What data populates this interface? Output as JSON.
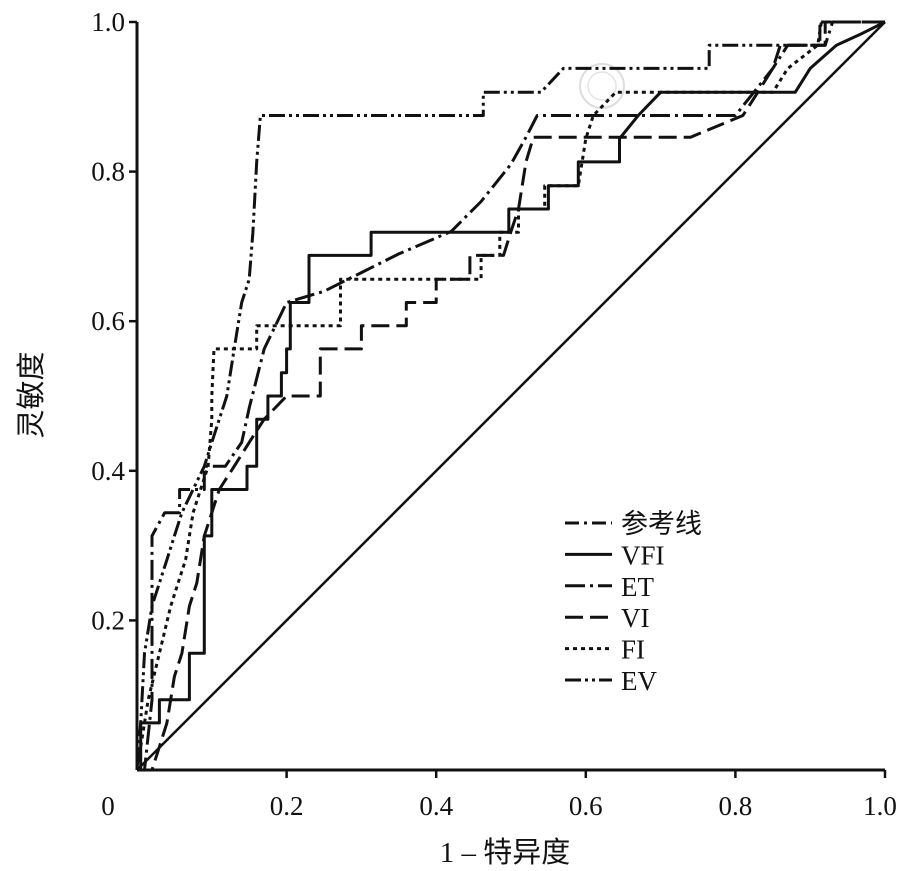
{
  "chart_data": {
    "type": "line",
    "title": "",
    "xlabel": "1 – 特异度",
    "ylabel": "灵敏度",
    "xlim": [
      0,
      1.0
    ],
    "ylim": [
      0,
      1.0
    ],
    "grid": false,
    "legend_position": "bottom-right",
    "line_color": "#111111",
    "xticks": [
      {
        "value": 0,
        "label": "0"
      },
      {
        "value": 0.2,
        "label": "0.2"
      },
      {
        "value": 0.4,
        "label": "0.4"
      },
      {
        "value": 0.6,
        "label": "0.6"
      },
      {
        "value": 0.8,
        "label": "0.8"
      },
      {
        "value": 1.0,
        "label": "1.0"
      }
    ],
    "yticks": [
      {
        "value": 0.2,
        "label": "0.2"
      },
      {
        "value": 0.4,
        "label": "0.4"
      },
      {
        "value": 0.6,
        "label": "0.6"
      },
      {
        "value": 0.8,
        "label": "0.8"
      },
      {
        "value": 1.0,
        "label": "1.0"
      }
    ],
    "series": [
      {
        "name": "参考线",
        "line_style": "solid",
        "legend_style": "dash-dot",
        "points": [
          [
            0,
            0
          ],
          [
            1,
            1
          ]
        ]
      },
      {
        "name": "VFI",
        "line_style": "solid",
        "points": [
          [
            0,
            0
          ],
          [
            0.005,
            0
          ],
          [
            0.005,
            0.063
          ],
          [
            0.03,
            0.063
          ],
          [
            0.03,
            0.094
          ],
          [
            0.07,
            0.094
          ],
          [
            0.07,
            0.156
          ],
          [
            0.09,
            0.156
          ],
          [
            0.09,
            0.313
          ],
          [
            0.1,
            0.313
          ],
          [
            0.1,
            0.375
          ],
          [
            0.147,
            0.375
          ],
          [
            0.147,
            0.406
          ],
          [
            0.16,
            0.406
          ],
          [
            0.16,
            0.469
          ],
          [
            0.175,
            0.469
          ],
          [
            0.175,
            0.5
          ],
          [
            0.193,
            0.5
          ],
          [
            0.193,
            0.531
          ],
          [
            0.2,
            0.531
          ],
          [
            0.2,
            0.563
          ],
          [
            0.205,
            0.563
          ],
          [
            0.205,
            0.625
          ],
          [
            0.23,
            0.625
          ],
          [
            0.23,
            0.688
          ],
          [
            0.313,
            0.688
          ],
          [
            0.313,
            0.719
          ],
          [
            0.497,
            0.719
          ],
          [
            0.497,
            0.75
          ],
          [
            0.55,
            0.75
          ],
          [
            0.55,
            0.781
          ],
          [
            0.59,
            0.781
          ],
          [
            0.59,
            0.813
          ],
          [
            0.645,
            0.813
          ],
          [
            0.645,
            0.844
          ],
          [
            0.67,
            0.875
          ],
          [
            0.7,
            0.906
          ],
          [
            0.88,
            0.906
          ],
          [
            0.9,
            0.938
          ],
          [
            0.935,
            0.969
          ],
          [
            0.97,
            0.985
          ],
          [
            1,
            1
          ]
        ]
      },
      {
        "name": "ET",
        "line_style": "long-dash-dot",
        "points": [
          [
            0,
            0
          ],
          [
            0.01,
            0
          ],
          [
            0.02,
            0.094
          ],
          [
            0.02,
            0.313
          ],
          [
            0.037,
            0.344
          ],
          [
            0.057,
            0.344
          ],
          [
            0.057,
            0.375
          ],
          [
            0.09,
            0.375
          ],
          [
            0.09,
            0.406
          ],
          [
            0.118,
            0.406
          ],
          [
            0.14,
            0.438
          ],
          [
            0.15,
            0.484
          ],
          [
            0.17,
            0.563
          ],
          [
            0.185,
            0.594
          ],
          [
            0.2,
            0.625
          ],
          [
            0.25,
            0.64
          ],
          [
            0.3,
            0.665
          ],
          [
            0.35,
            0.69
          ],
          [
            0.42,
            0.72
          ],
          [
            0.46,
            0.76
          ],
          [
            0.5,
            0.81
          ],
          [
            0.52,
            0.846
          ],
          [
            0.535,
            0.875
          ],
          [
            0.8,
            0.875
          ],
          [
            0.85,
            0.938
          ],
          [
            0.87,
            0.969
          ],
          [
            0.92,
            0.969
          ],
          [
            0.93,
            1
          ],
          [
            1,
            1
          ]
        ]
      },
      {
        "name": "VI",
        "line_style": "long-dash",
        "points": [
          [
            0,
            0
          ],
          [
            0.02,
            0
          ],
          [
            0.03,
            0.031
          ],
          [
            0.04,
            0.063
          ],
          [
            0.05,
            0.125
          ],
          [
            0.06,
            0.156
          ],
          [
            0.07,
            0.219
          ],
          [
            0.08,
            0.25
          ],
          [
            0.09,
            0.313
          ],
          [
            0.1,
            0.344
          ],
          [
            0.11,
            0.375
          ],
          [
            0.13,
            0.406
          ],
          [
            0.15,
            0.438
          ],
          [
            0.17,
            0.469
          ],
          [
            0.2,
            0.5
          ],
          [
            0.245,
            0.5
          ],
          [
            0.245,
            0.563
          ],
          [
            0.3,
            0.563
          ],
          [
            0.3,
            0.594
          ],
          [
            0.36,
            0.594
          ],
          [
            0.36,
            0.625
          ],
          [
            0.4,
            0.625
          ],
          [
            0.4,
            0.656
          ],
          [
            0.445,
            0.656
          ],
          [
            0.445,
            0.688
          ],
          [
            0.49,
            0.688
          ],
          [
            0.5,
            0.72
          ],
          [
            0.51,
            0.75
          ],
          [
            0.52,
            0.813
          ],
          [
            0.53,
            0.846
          ],
          [
            0.74,
            0.846
          ],
          [
            0.81,
            0.875
          ],
          [
            0.83,
            0.906
          ],
          [
            0.85,
            0.938
          ],
          [
            0.86,
            0.969
          ],
          [
            0.92,
            0.969
          ],
          [
            0.92,
            1
          ],
          [
            1,
            1
          ]
        ]
      },
      {
        "name": "FI",
        "line_style": "dotted",
        "points": [
          [
            0,
            0
          ],
          [
            0.005,
            0.031
          ],
          [
            0.015,
            0.094
          ],
          [
            0.03,
            0.156
          ],
          [
            0.045,
            0.219
          ],
          [
            0.055,
            0.25
          ],
          [
            0.065,
            0.281
          ],
          [
            0.075,
            0.344
          ],
          [
            0.085,
            0.375
          ],
          [
            0.095,
            0.406
          ],
          [
            0.1,
            0.469
          ],
          [
            0.1,
            0.5
          ],
          [
            0.103,
            0.563
          ],
          [
            0.16,
            0.563
          ],
          [
            0.16,
            0.594
          ],
          [
            0.272,
            0.594
          ],
          [
            0.272,
            0.656
          ],
          [
            0.46,
            0.656
          ],
          [
            0.46,
            0.688
          ],
          [
            0.485,
            0.688
          ],
          [
            0.485,
            0.719
          ],
          [
            0.51,
            0.719
          ],
          [
            0.51,
            0.75
          ],
          [
            0.545,
            0.75
          ],
          [
            0.545,
            0.781
          ],
          [
            0.59,
            0.781
          ],
          [
            0.6,
            0.844
          ],
          [
            0.61,
            0.875
          ],
          [
            0.64,
            0.906
          ],
          [
            0.85,
            0.906
          ],
          [
            0.87,
            0.938
          ],
          [
            0.91,
            0.969
          ],
          [
            0.915,
            1
          ],
          [
            1,
            1
          ]
        ]
      },
      {
        "name": "EV",
        "line_style": "dash-dot-dot",
        "points": [
          [
            0,
            0
          ],
          [
            0.005,
            0.063
          ],
          [
            0.01,
            0.156
          ],
          [
            0.02,
            0.219
          ],
          [
            0.03,
            0.25
          ],
          [
            0.04,
            0.281
          ],
          [
            0.05,
            0.313
          ],
          [
            0.06,
            0.344
          ],
          [
            0.075,
            0.375
          ],
          [
            0.09,
            0.406
          ],
          [
            0.1,
            0.438
          ],
          [
            0.11,
            0.469
          ],
          [
            0.12,
            0.5
          ],
          [
            0.13,
            0.563
          ],
          [
            0.14,
            0.625
          ],
          [
            0.15,
            0.656
          ],
          [
            0.155,
            0.719
          ],
          [
            0.16,
            0.813
          ],
          [
            0.165,
            0.875
          ],
          [
            0.463,
            0.875
          ],
          [
            0.463,
            0.906
          ],
          [
            0.54,
            0.906
          ],
          [
            0.57,
            0.938
          ],
          [
            0.765,
            0.938
          ],
          [
            0.765,
            0.969
          ],
          [
            0.913,
            0.969
          ],
          [
            0.913,
            1
          ],
          [
            1,
            1
          ]
        ]
      }
    ]
  }
}
